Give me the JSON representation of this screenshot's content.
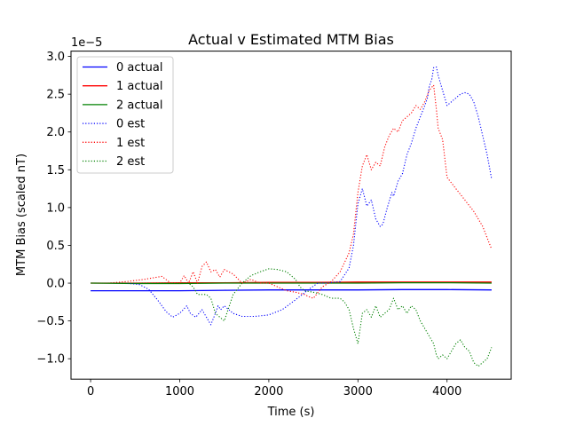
{
  "chart_data": {
    "type": "line",
    "title": "Actual v Estimated MTM Bias",
    "xlabel": "Time (s)",
    "ylabel": "MTM Bias (scaled nT)",
    "y_offset_label": "1e−5",
    "xlim": [
      -220,
      4720
    ],
    "ylim": [
      -1.27,
      3.07
    ],
    "x_ticks": [
      0,
      1000,
      2000,
      3000,
      4000
    ],
    "y_ticks": [
      -1.0,
      -0.5,
      0.0,
      0.5,
      1.0,
      1.5,
      2.0,
      2.5,
      3.0
    ],
    "y_tick_labels": [
      "−1.0",
      "−0.5",
      "0.0",
      "0.5",
      "1.0",
      "1.5",
      "2.0",
      "2.5",
      "3.0"
    ],
    "grid": false,
    "legend_position": "top-left",
    "series": [
      {
        "name": "0 actual",
        "color": "#0000ff",
        "style": "solid",
        "x": [
          0,
          500,
          1000,
          1500,
          2000,
          2500,
          3000,
          3500,
          4000,
          4500
        ],
        "y": [
          -0.1,
          -0.1,
          -0.1,
          -0.095,
          -0.09,
          -0.09,
          -0.09,
          -0.085,
          -0.085,
          -0.09
        ]
      },
      {
        "name": "1 actual",
        "color": "#ff0000",
        "style": "solid",
        "x": [
          0,
          500,
          1000,
          1500,
          2000,
          2500,
          3000,
          3500,
          4000,
          4500
        ],
        "y": [
          0.0,
          0.0,
          0.005,
          0.005,
          0.01,
          0.01,
          0.015,
          0.015,
          0.015,
          0.015
        ]
      },
      {
        "name": "2 actual",
        "color": "#008000",
        "style": "solid",
        "x": [
          0,
          500,
          1000,
          1500,
          2000,
          2500,
          3000,
          3500,
          4000,
          4500
        ],
        "y": [
          0.0,
          -0.005,
          -0.005,
          0.0,
          0.0,
          0.0,
          0.0,
          0.005,
          0.005,
          0.0
        ]
      },
      {
        "name": "0 est",
        "color": "#0000ff",
        "style": "dotted",
        "x": [
          0,
          200,
          400,
          550,
          650,
          750,
          850,
          920,
          1000,
          1080,
          1120,
          1180,
          1250,
          1300,
          1350,
          1400,
          1430,
          1460,
          1500,
          1600,
          1700,
          1850,
          2000,
          2150,
          2300,
          2450,
          2550,
          2650,
          2800,
          2900,
          2950,
          3000,
          3050,
          3100,
          3150,
          3200,
          3250,
          3280,
          3330,
          3380,
          3400,
          3450,
          3500,
          3550,
          3600,
          3650,
          3700,
          3750,
          3780,
          3800,
          3830,
          3850,
          3880,
          3900,
          3950,
          4000,
          4050,
          4100,
          4150,
          4200,
          4250,
          4300,
          4350,
          4400,
          4450,
          4500
        ],
        "y": [
          0.0,
          0.0,
          0.0,
          -0.02,
          -0.08,
          -0.22,
          -0.38,
          -0.45,
          -0.4,
          -0.3,
          -0.4,
          -0.45,
          -0.35,
          -0.45,
          -0.55,
          -0.4,
          -0.3,
          -0.35,
          -0.3,
          -0.4,
          -0.44,
          -0.44,
          -0.42,
          -0.35,
          -0.22,
          -0.08,
          0.0,
          0.0,
          0.02,
          0.2,
          0.5,
          1.05,
          1.25,
          1.02,
          1.1,
          0.85,
          0.75,
          0.78,
          1.0,
          1.2,
          1.15,
          1.35,
          1.45,
          1.7,
          1.85,
          2.05,
          2.2,
          2.35,
          2.45,
          2.6,
          2.7,
          2.85,
          2.86,
          2.75,
          2.55,
          2.35,
          2.4,
          2.45,
          2.5,
          2.52,
          2.5,
          2.4,
          2.2,
          1.95,
          1.7,
          1.38
        ]
      },
      {
        "name": "1 est",
        "color": "#ff0000",
        "style": "dotted",
        "x": [
          0,
          200,
          400,
          600,
          800,
          900,
          1000,
          1050,
          1100,
          1150,
          1200,
          1250,
          1300,
          1350,
          1400,
          1450,
          1500,
          1600,
          1700,
          1800,
          1900,
          2000,
          2100,
          2200,
          2300,
          2400,
          2450,
          2500,
          2600,
          2700,
          2800,
          2900,
          2950,
          3000,
          3050,
          3100,
          3150,
          3200,
          3250,
          3300,
          3350,
          3400,
          3450,
          3500,
          3550,
          3600,
          3650,
          3700,
          3750,
          3800,
          3850,
          3880,
          3900,
          3950,
          4000,
          4100,
          4200,
          4300,
          4400,
          4500
        ],
        "y": [
          0.0,
          0.0,
          0.02,
          0.05,
          0.09,
          0.0,
          0.0,
          0.1,
          0.0,
          0.15,
          0.0,
          0.22,
          0.28,
          0.15,
          0.18,
          0.08,
          0.18,
          0.12,
          0.0,
          0.05,
          0.0,
          0.0,
          -0.05,
          -0.1,
          -0.12,
          -0.15,
          -0.18,
          -0.2,
          -0.05,
          0.02,
          0.15,
          0.4,
          0.65,
          1.2,
          1.55,
          1.7,
          1.5,
          1.6,
          1.55,
          1.8,
          1.95,
          2.05,
          2.0,
          2.15,
          2.2,
          2.25,
          2.35,
          2.3,
          2.4,
          2.55,
          2.62,
          2.3,
          2.05,
          1.9,
          1.4,
          1.25,
          1.1,
          0.95,
          0.75,
          0.45
        ]
      },
      {
        "name": "2 est",
        "color": "#008000",
        "style": "dotted",
        "x": [
          0,
          200,
          400,
          600,
          800,
          1000,
          1100,
          1150,
          1200,
          1250,
          1300,
          1350,
          1400,
          1450,
          1500,
          1600,
          1700,
          1800,
          1900,
          2000,
          2100,
          2200,
          2300,
          2350,
          2400,
          2500,
          2600,
          2700,
          2800,
          2850,
          2900,
          2950,
          3000,
          3050,
          3100,
          3150,
          3200,
          3250,
          3300,
          3350,
          3400,
          3450,
          3500,
          3550,
          3600,
          3650,
          3700,
          3750,
          3800,
          3850,
          3880,
          3900,
          3950,
          4000,
          4100,
          4150,
          4200,
          4250,
          4300,
          4350,
          4400,
          4450,
          4500
        ],
        "y": [
          0.0,
          0.0,
          0.0,
          0.0,
          0.0,
          0.0,
          0.0,
          -0.05,
          -0.15,
          -0.15,
          -0.15,
          -0.2,
          -0.4,
          -0.45,
          -0.5,
          -0.15,
          0.0,
          0.1,
          0.15,
          0.19,
          0.18,
          0.15,
          0.05,
          -0.05,
          -0.1,
          -0.12,
          -0.15,
          -0.2,
          -0.2,
          -0.25,
          -0.35,
          -0.6,
          -0.8,
          -0.4,
          -0.35,
          -0.45,
          -0.3,
          -0.45,
          -0.4,
          -0.35,
          -0.2,
          -0.35,
          -0.3,
          -0.4,
          -0.3,
          -0.35,
          -0.5,
          -0.6,
          -0.7,
          -0.8,
          -0.95,
          -1.0,
          -0.95,
          -1.0,
          -0.8,
          -0.75,
          -0.85,
          -0.9,
          -1.05,
          -1.1,
          -1.05,
          -1.0,
          -0.85
        ]
      }
    ]
  }
}
